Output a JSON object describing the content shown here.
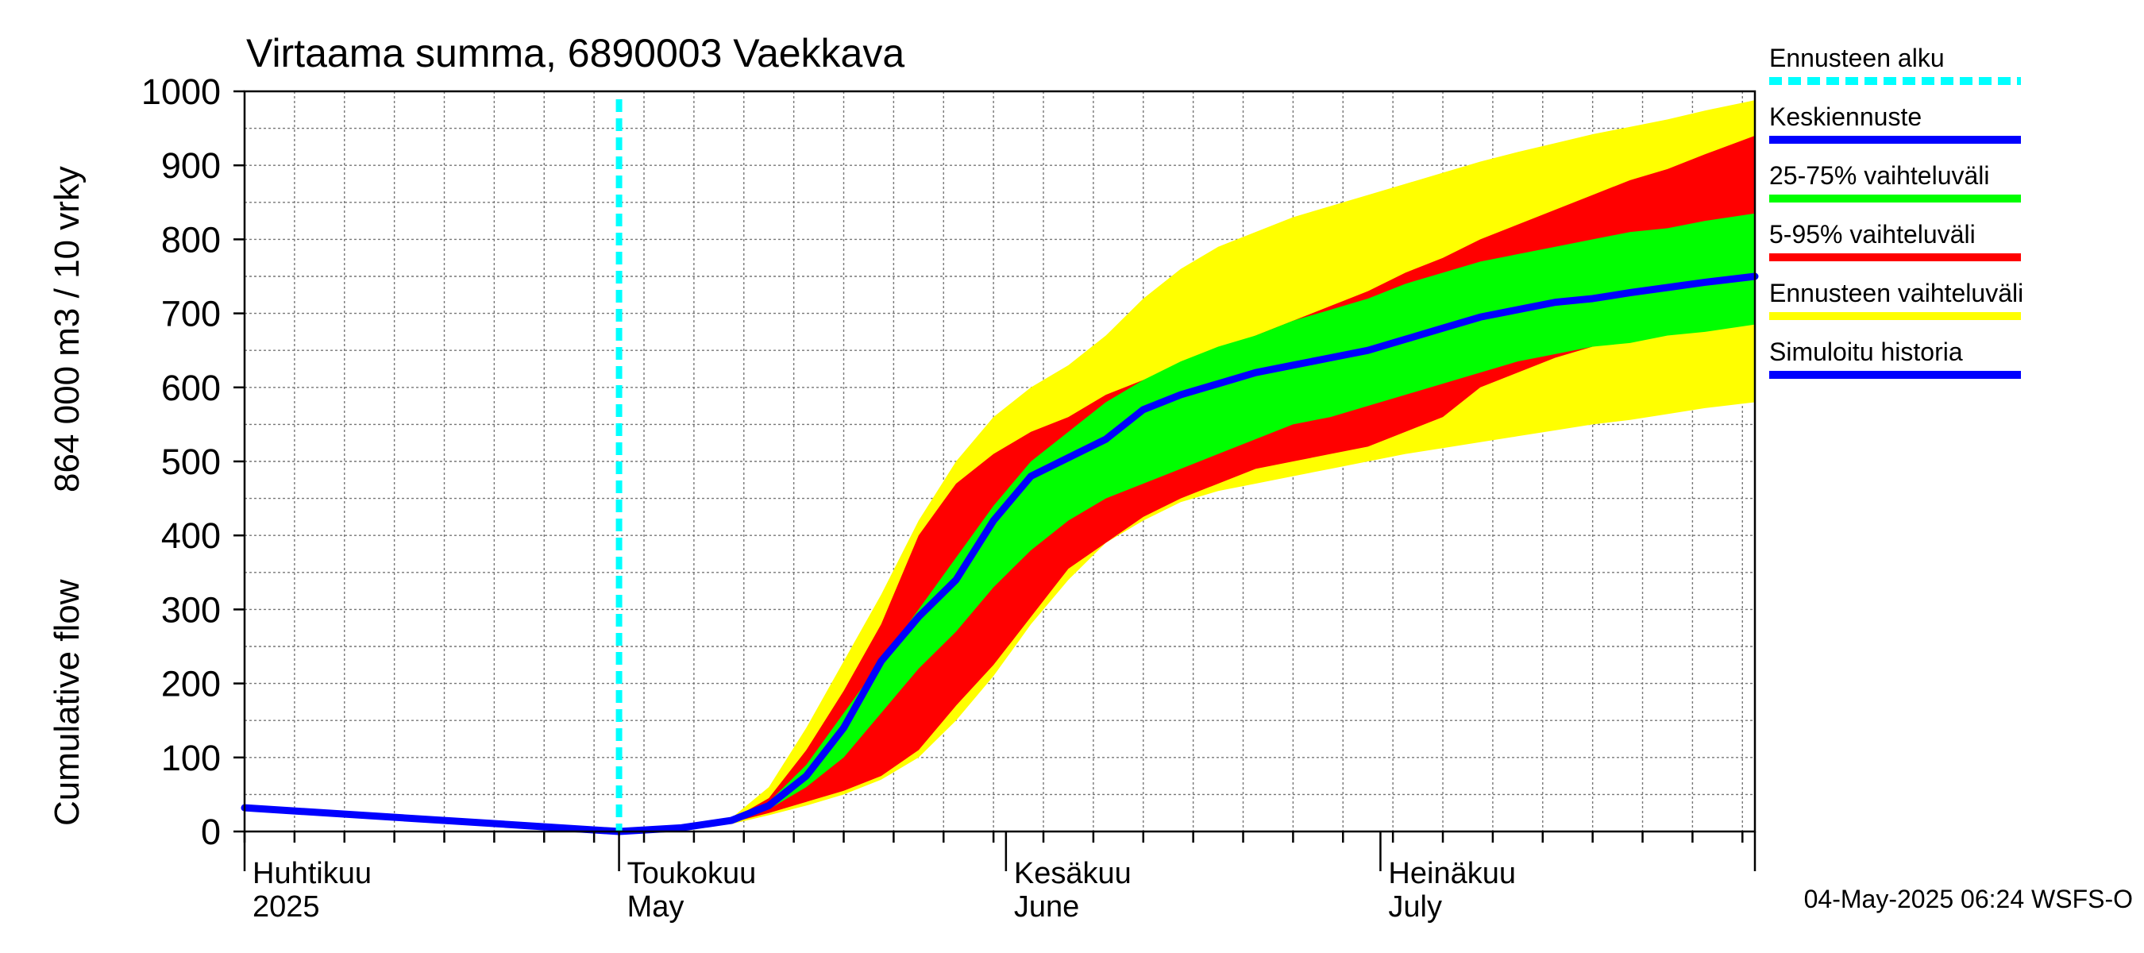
{
  "chart_data": {
    "type": "area",
    "title": "Virtaama summa, 6890003 Vaekkava",
    "ylabel_lines": [
      "Cumulative flow",
      "864 000 m3 / 10 vrky"
    ],
    "ylim": [
      0,
      1000
    ],
    "xlim": [
      "2025-04-01",
      "2025-07-31"
    ],
    "yticks": [
      0,
      100,
      200,
      300,
      400,
      500,
      600,
      700,
      800,
      900,
      1000
    ],
    "grid": true,
    "legend_position": "right",
    "months": [
      {
        "date": "2025-04-01",
        "label1": "Huhtikuu",
        "label2": "2025"
      },
      {
        "date": "2025-05-01",
        "label1": "Toukokuu",
        "label2": "May"
      },
      {
        "date": "2025-06-01",
        "label1": "Kesäkuu",
        "label2": "June"
      },
      {
        "date": "2025-07-01",
        "label1": "Heinäkuu",
        "label2": "July"
      }
    ],
    "forecast_start": "2025-05-01",
    "x": [
      "2025-05-01",
      "2025-05-06",
      "2025-05-10",
      "2025-05-13",
      "2025-05-16",
      "2025-05-19",
      "2025-05-22",
      "2025-05-25",
      "2025-05-28",
      "2025-05-31",
      "2025-06-03",
      "2025-06-06",
      "2025-06-09",
      "2025-06-12",
      "2025-06-15",
      "2025-06-18",
      "2025-06-21",
      "2025-06-24",
      "2025-06-27",
      "2025-06-30",
      "2025-07-03",
      "2025-07-06",
      "2025-07-09",
      "2025-07-12",
      "2025-07-15",
      "2025-07-18",
      "2025-07-21",
      "2025-07-24",
      "2025-07-27",
      "2025-07-31"
    ],
    "series": [
      {
        "name": "Ennusteen vaihteluväli",
        "color": "#ffff00",
        "lower": [
          0,
          4,
          10,
          22,
          35,
          50,
          70,
          100,
          150,
          210,
          280,
          340,
          390,
          420,
          445,
          460,
          470,
          480,
          490,
          500,
          510,
          518,
          526,
          534,
          542,
          550,
          556,
          564,
          572,
          580
        ],
        "upper": [
          0,
          6,
          18,
          60,
          140,
          230,
          320,
          420,
          500,
          560,
          600,
          630,
          670,
          720,
          760,
          790,
          810,
          830,
          845,
          860,
          875,
          890,
          905,
          918,
          930,
          942,
          952,
          962,
          974,
          988
        ]
      },
      {
        "name": "5-95% vaihteluväli",
        "color": "#ff0000",
        "lower": [
          0,
          5,
          12,
          25,
          40,
          55,
          75,
          110,
          170,
          225,
          290,
          355,
          390,
          425,
          450,
          470,
          490,
          500,
          510,
          520,
          540,
          560,
          600,
          620,
          640,
          655,
          665,
          675,
          682,
          695
        ],
        "upper": [
          0,
          6,
          16,
          45,
          110,
          190,
          280,
          400,
          470,
          510,
          540,
          560,
          590,
          610,
          630,
          650,
          670,
          690,
          710,
          730,
          755,
          775,
          800,
          820,
          840,
          860,
          880,
          895,
          915,
          940
        ]
      },
      {
        "name": "25-75% vaihteluväli",
        "color": "#00ff00",
        "lower": [
          0,
          5,
          14,
          30,
          60,
          100,
          160,
          220,
          270,
          330,
          380,
          420,
          450,
          470,
          490,
          510,
          530,
          550,
          560,
          575,
          590,
          605,
          620,
          635,
          645,
          655,
          660,
          670,
          675,
          685
        ],
        "upper": [
          0,
          6,
          15,
          40,
          90,
          160,
          230,
          300,
          370,
          440,
          500,
          540,
          580,
          610,
          635,
          655,
          670,
          690,
          705,
          720,
          740,
          755,
          770,
          780,
          790,
          800,
          810,
          815,
          825,
          835
        ]
      },
      {
        "name": "Keskiennuste",
        "color": "#0000ff",
        "values": [
          0,
          5,
          15,
          35,
          75,
          140,
          230,
          290,
          340,
          420,
          480,
          505,
          530,
          570,
          590,
          605,
          620,
          630,
          640,
          650,
          665,
          680,
          695,
          705,
          715,
          720,
          728,
          735,
          742,
          750
        ]
      }
    ],
    "history": {
      "name": "Simuloitu historia",
      "color": "#0000ff",
      "x": [
        "2025-04-01",
        "2025-05-01"
      ],
      "values": [
        32,
        0
      ]
    }
  },
  "legend": [
    {
      "label": "Ennusteen alku",
      "color": "#00ffff",
      "dashed": true
    },
    {
      "label": "Keskiennuste",
      "color": "#0000ff",
      "dashed": false
    },
    {
      "label": "25-75% vaihteluväli",
      "color": "#00ff00",
      "dashed": false
    },
    {
      "label": "5-95% vaihteluväli",
      "color": "#ff0000",
      "dashed": false
    },
    {
      "label": "Ennusteen vaihteluväli",
      "color": "#ffff00",
      "dashed": false
    },
    {
      "label": "Simuloitu historia",
      "color": "#0000ff",
      "dashed": false
    }
  ],
  "footer": "04-May-2025 06:24 WSFS-O"
}
